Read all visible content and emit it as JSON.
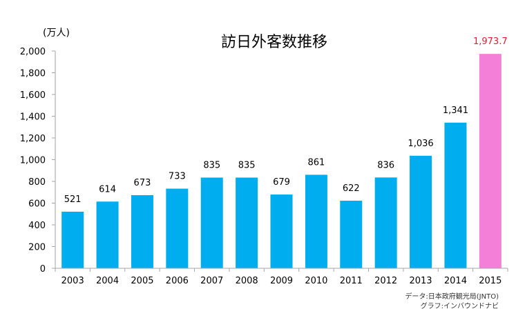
{
  "chart_data": {
    "type": "bar",
    "title": "訪日外客数推移",
    "unit_label": "(万人)",
    "categories": [
      "2003",
      "2004",
      "2005",
      "2006",
      "2007",
      "2008",
      "2009",
      "2010",
      "2011",
      "2012",
      "2013",
      "2014",
      "2015"
    ],
    "values": [
      521,
      614,
      673,
      733,
      835,
      835,
      679,
      861,
      622,
      836,
      1036,
      1341,
      1973.7
    ],
    "value_labels": [
      "521",
      "614",
      "673",
      "733",
      "835",
      "835",
      "679",
      "861",
      "622",
      "836",
      "1,036",
      "1,341",
      "1,973.7"
    ],
    "ylim": [
      0,
      2000
    ],
    "yticks": [
      0,
      200,
      400,
      600,
      800,
      1000,
      1200,
      1400,
      1600,
      1800,
      2000
    ],
    "ytick_labels": [
      "0",
      "200",
      "400",
      "600",
      "800",
      "1,000",
      "1,200",
      "1,400",
      "1,600",
      "1,800",
      "2,000"
    ],
    "grid": false,
    "highlight_index": 12,
    "colors": {
      "bar": "#00aeef",
      "highlight_bar": "#f47fd8",
      "highlight_label": "#e8192c",
      "label": "#000000",
      "axis": "#a6a6a6"
    },
    "source_lines": [
      "データ:日本政府観光局(JNTO)",
      "グラフ:インバウンドナビ"
    ]
  }
}
